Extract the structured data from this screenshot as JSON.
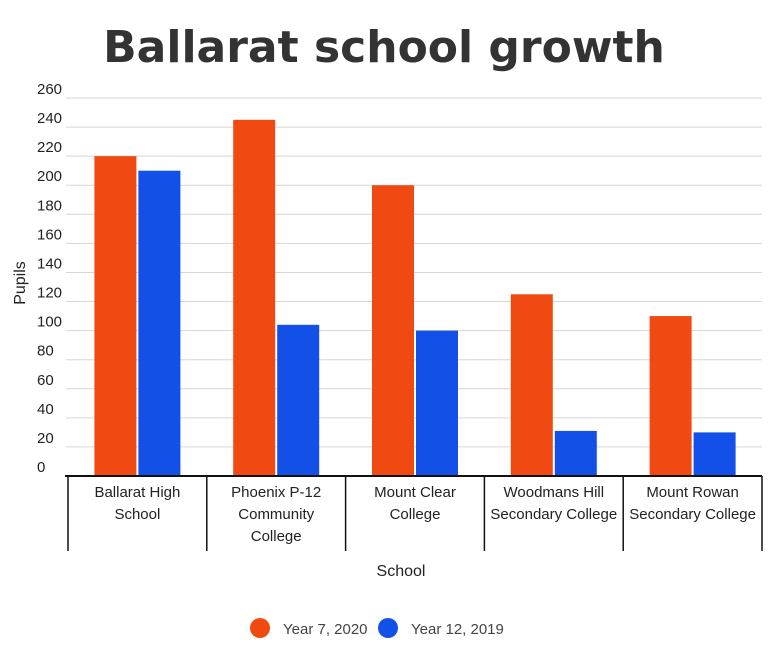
{
  "chart_data": {
    "type": "bar",
    "title": "Ballarat school growth",
    "xlabel": "School",
    "ylabel": "Pupils",
    "ylim": [
      0,
      260
    ],
    "yticks": [
      0,
      20,
      40,
      60,
      80,
      100,
      120,
      140,
      160,
      180,
      200,
      220,
      240,
      260
    ],
    "grid": true,
    "legend_position": "bottom",
    "categories": [
      [
        "Ballarat High",
        "School"
      ],
      [
        "Phoenix P-12",
        "Community",
        "College"
      ],
      [
        "Mount Clear",
        "College"
      ],
      [
        "Woodmans Hill",
        "Secondary College"
      ],
      [
        "Mount Rowan",
        "Secondary College"
      ]
    ],
    "series": [
      {
        "name": "Year 7, 2020",
        "color": "#f04a12",
        "values": [
          220,
          245,
          200,
          125,
          110
        ]
      },
      {
        "name": "Year 12, 2019",
        "color": "#1350e8",
        "values": [
          210,
          104,
          100,
          31,
          30
        ]
      }
    ]
  }
}
